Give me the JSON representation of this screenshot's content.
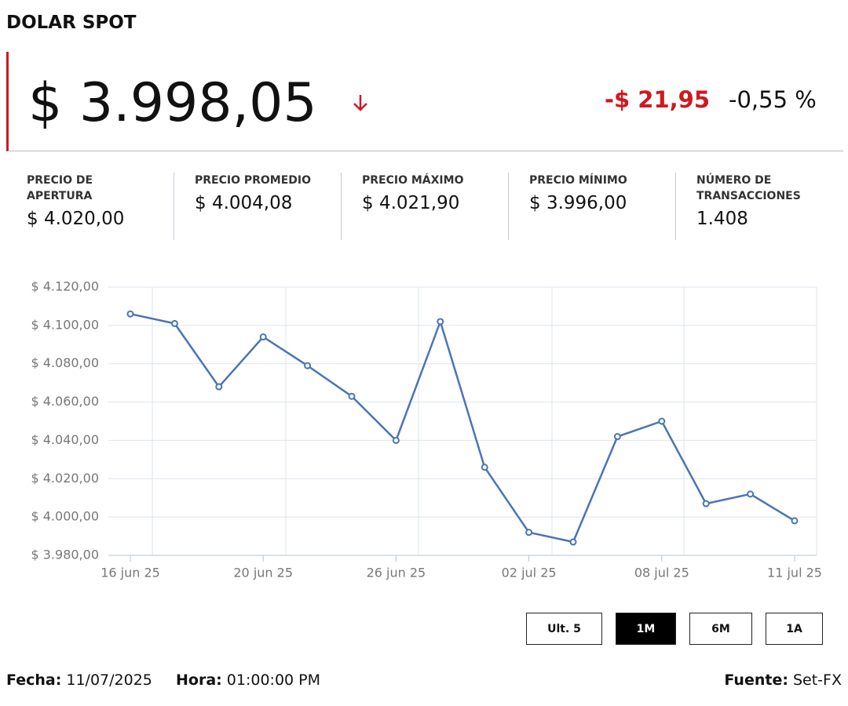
{
  "title": "DOLAR SPOT",
  "price": "$ 3.998,05",
  "change": "-$ 21,95",
  "change_pct": "-0,55 %",
  "stats": [
    {
      "label": "PRECIO DE APERTURA",
      "value": "$ 4.020,00"
    },
    {
      "label": "PRECIO PROMEDIO",
      "value": "$ 4.004,08"
    },
    {
      "label": "PRECIO MÁXIMO",
      "value": "$ 4.021,90"
    },
    {
      "label": "PRECIO MÍNIMO",
      "value": "$ 3.996,00"
    },
    {
      "label": "NÚMERO DE TRANSACCIONES",
      "value": "1.408"
    }
  ],
  "chart_data": {
    "type": "line",
    "categories": [
      "16 jun 25",
      null,
      null,
      "20 jun 25",
      null,
      null,
      "26 jun 25",
      null,
      null,
      "02 jul 25",
      null,
      null,
      "08 jul 25",
      null,
      null,
      "11 jul 25"
    ],
    "values": [
      4106,
      4101,
      4068,
      4094,
      4079,
      4063,
      4040,
      4102,
      4026,
      3992,
      3987,
      4042,
      4050,
      4007,
      4012,
      3998.05
    ],
    "color": "#4a74b4",
    "ylim": [
      3980,
      4120
    ],
    "yticks": [
      {
        "value": 3980,
        "label": "$ 3.980,00"
      },
      {
        "value": 4000,
        "label": "$ 4.000,00"
      },
      {
        "value": 4020,
        "label": "$ 4.020,00"
      },
      {
        "value": 4040,
        "label": "$ 4.040,00"
      },
      {
        "value": 4060,
        "label": "$ 4.060,00"
      },
      {
        "value": 4080,
        "label": "$ 4.080,00"
      },
      {
        "value": 4100,
        "label": "$ 4.100,00"
      },
      {
        "value": 4120,
        "label": "$ 4.120,00"
      }
    ],
    "grid": true
  },
  "buttons": [
    "Ult. 5",
    "1M",
    "6M",
    "1A"
  ],
  "active_button": 1,
  "footer": {
    "date_label": "Fecha:",
    "date": "11/07/2025",
    "time_label": "Hora:",
    "time": "01:00:00 PM",
    "source_label": "Fuente:",
    "source": "Set-FX"
  }
}
